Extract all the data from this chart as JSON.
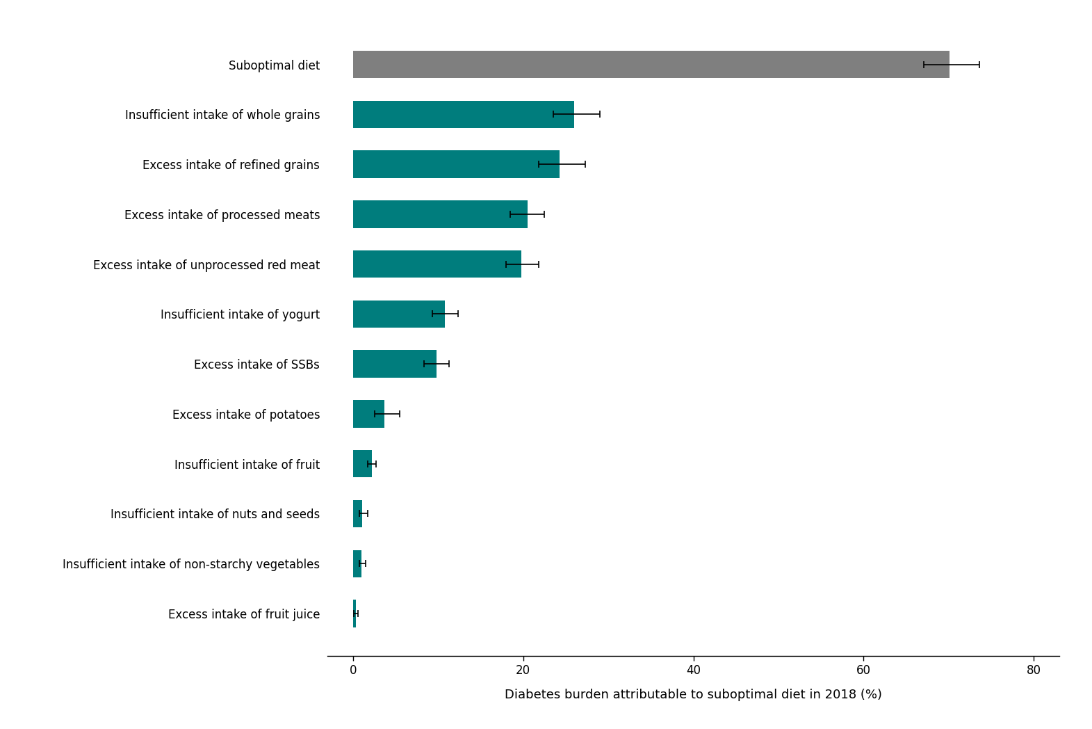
{
  "categories": [
    "Excess intake of fruit juice",
    "Insufficient intake of non-starchy vegetables",
    "Insufficient intake of nuts and seeds",
    "Insufficient intake of fruit",
    "Excess intake of potatoes",
    "Excess intake of SSBs",
    "Insufficient intake of yogurt",
    "Excess intake of unprocessed red meat",
    "Excess intake of processed meats",
    "Excess intake of refined grains",
    "Insufficient intake of whole grains",
    "Suboptimal diet"
  ],
  "values": [
    0.3,
    1.0,
    1.1,
    2.2,
    3.7,
    9.8,
    10.8,
    19.8,
    20.5,
    24.3,
    26.0,
    70.1
  ],
  "error_low": [
    0.2,
    0.3,
    0.4,
    0.5,
    1.2,
    1.5,
    1.5,
    1.8,
    2.0,
    2.5,
    2.5,
    3.0
  ],
  "error_high": [
    0.3,
    0.5,
    0.6,
    0.5,
    1.8,
    1.5,
    1.5,
    2.0,
    2.0,
    3.0,
    3.0,
    3.5
  ],
  "bar_colors": [
    "#007d7d",
    "#007d7d",
    "#007d7d",
    "#007d7d",
    "#007d7d",
    "#007d7d",
    "#007d7d",
    "#007d7d",
    "#007d7d",
    "#007d7d",
    "#007d7d",
    "#7f7f7f"
  ],
  "xlabel": "Diabetes burden attributable to suboptimal diet in 2018 (%)",
  "xlim": [
    -3,
    83
  ],
  "xticks": [
    0,
    20,
    40,
    60,
    80
  ],
  "background_color": "#ffffff",
  "bar_height": 0.55,
  "label_fontsize": 12,
  "xlabel_fontsize": 13
}
